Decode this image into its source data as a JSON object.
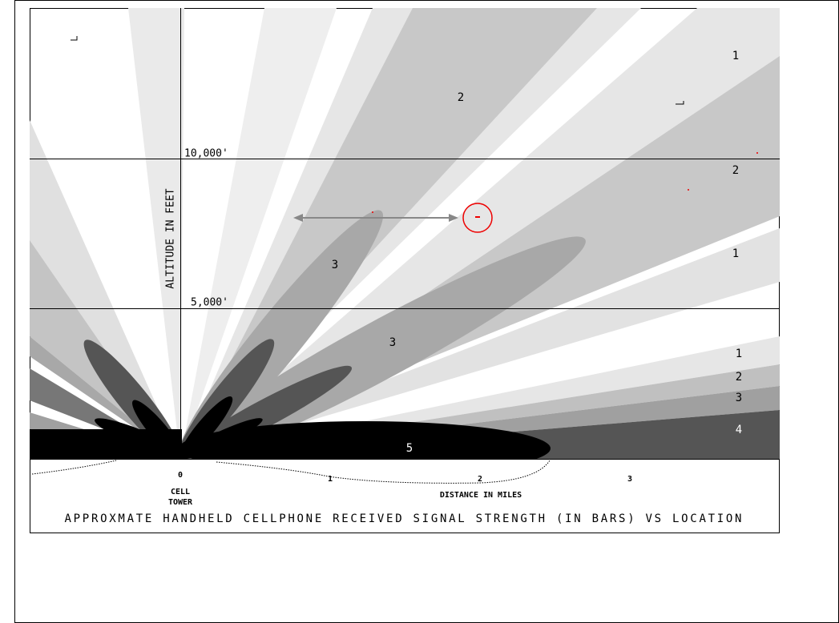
{
  "title": "APPROXMATE HANDHELD CELLPHONE RECEIVED SIGNAL STRENGTH (IN BARS) VS LOCATION",
  "y_axis": {
    "label": "ALTITUDE IN FEET",
    "ticks": [
      "10,000'",
      "5,000'"
    ]
  },
  "x_axis": {
    "label": "DISTANCE IN MILES",
    "ticks": [
      "0",
      "1",
      "2",
      "3"
    ],
    "origin_label": [
      "CELL",
      "TOWER"
    ]
  },
  "zones": [
    "1",
    "2",
    "2",
    "1",
    "3",
    "3",
    "1",
    "2",
    "3",
    "4",
    "5"
  ]
}
